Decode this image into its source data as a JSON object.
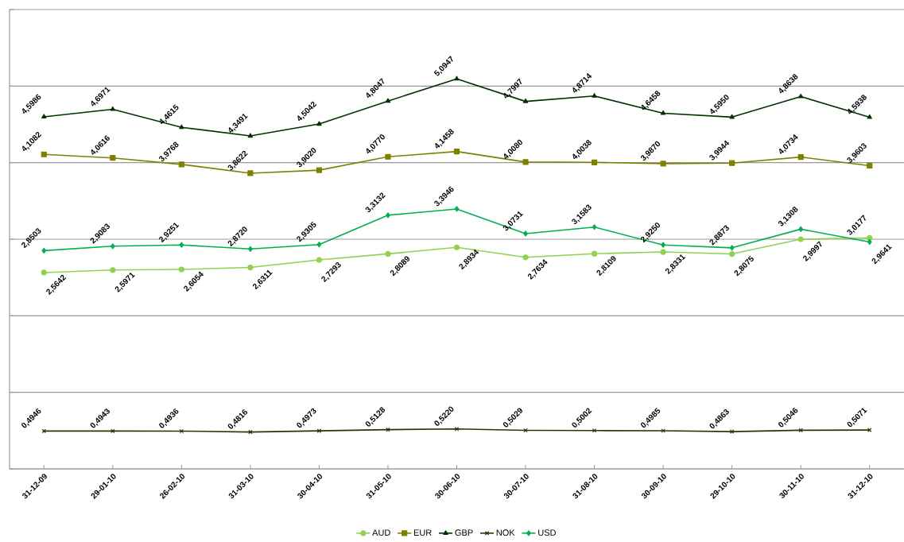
{
  "chart_data": {
    "type": "line",
    "categories": [
      "31-12-09",
      "29-01-10",
      "26-02-10",
      "31-03-10",
      "30-04-10",
      "31-05-10",
      "30-06-10",
      "30-07-10",
      "31-08-10",
      "30-09-10",
      "29-10-10",
      "30-11-10",
      "31-12-10"
    ],
    "series": [
      {
        "name": "AUD",
        "color": "#92d050",
        "marker": "circle",
        "values": [
          2.5642,
          2.5971,
          2.6054,
          2.6311,
          2.7293,
          2.8089,
          2.8934,
          2.7634,
          2.8109,
          2.8331,
          2.8075,
          2.9997,
          3.0177
        ],
        "value_labels": [
          "2,5642",
          "2,5971",
          "2,6054",
          "2,6311",
          "2,7293",
          "2,8089",
          "2,8934",
          "2,7634",
          "2,8109",
          "2,8331",
          "2,8075",
          "2,9997",
          "3,0177"
        ]
      },
      {
        "name": "EUR",
        "color": "#808000",
        "marker": "square",
        "values": [
          4.1082,
          4.0616,
          3.9768,
          3.8622,
          3.902,
          4.077,
          4.1458,
          4.008,
          4.0038,
          3.987,
          3.9944,
          4.0734,
          3.9603
        ],
        "value_labels": [
          "4,1082",
          "4,0616",
          "3,9768",
          "3,8622",
          "3,9020",
          "4,0770",
          "4,1458",
          "4,0080",
          "4,0038",
          "3,9870",
          "3,9944",
          "4,0734",
          "3,9603"
        ]
      },
      {
        "name": "GBP",
        "color": "#003300",
        "marker": "triangle",
        "values": [
          4.5986,
          4.6971,
          4.4615,
          4.3491,
          4.5042,
          4.8047,
          5.0947,
          4.7997,
          4.8714,
          4.6458,
          4.595,
          4.8638,
          4.5938
        ],
        "value_labels": [
          "4,5986",
          "4,6971",
          "4,4615",
          "4,3491",
          "4,5042",
          "4,8047",
          "5,0947",
          "4,7997",
          "4,8714",
          "4,6458",
          "4,5950",
          "4,8638",
          "4,5938"
        ]
      },
      {
        "name": "NOK",
        "color": "#333300",
        "marker": "cross",
        "values": [
          0.4946,
          0.4943,
          0.4936,
          0.4816,
          0.4973,
          0.5128,
          0.522,
          0.5029,
          0.5002,
          0.4985,
          0.4863,
          0.5046,
          0.5071
        ],
        "value_labels": [
          "0,4946",
          "0,4943",
          "0,4936",
          "0,4816",
          "0,4973",
          "0,5128",
          "0,5220",
          "0,5029",
          "0,5002",
          "0,4985",
          "0,4863",
          "0,5046",
          "0,5071"
        ]
      },
      {
        "name": "USD",
        "color": "#00b050",
        "marker": "diamond",
        "values": [
          2.8503,
          2.9083,
          2.9251,
          2.872,
          2.9305,
          3.3132,
          3.3946,
          3.0731,
          3.1583,
          2.925,
          2.8873,
          3.1308,
          2.9641
        ],
        "value_labels": [
          "2,8503",
          "2,9083",
          "2,9251",
          "2,8720",
          "2,9305",
          "3,3132",
          "3,3946",
          "3,0731",
          "3,1583",
          "2,9250",
          "2,8873",
          "3,1308",
          "2,9641"
        ]
      }
    ],
    "ylim": [
      0,
      6
    ],
    "yticks": [
      {
        "value": 0,
        "label": null
      },
      {
        "value": 1,
        "label": null
      },
      {
        "value": 2,
        "label": null
      },
      {
        "value": 3,
        "label": null
      },
      {
        "value": 4,
        "label": null
      },
      {
        "value": 5,
        "label": null
      },
      {
        "value": 6,
        "label": null
      }
    ],
    "tick_labels": "x",
    "grid": "y",
    "legend": "bottom",
    "line_style": "solid"
  }
}
